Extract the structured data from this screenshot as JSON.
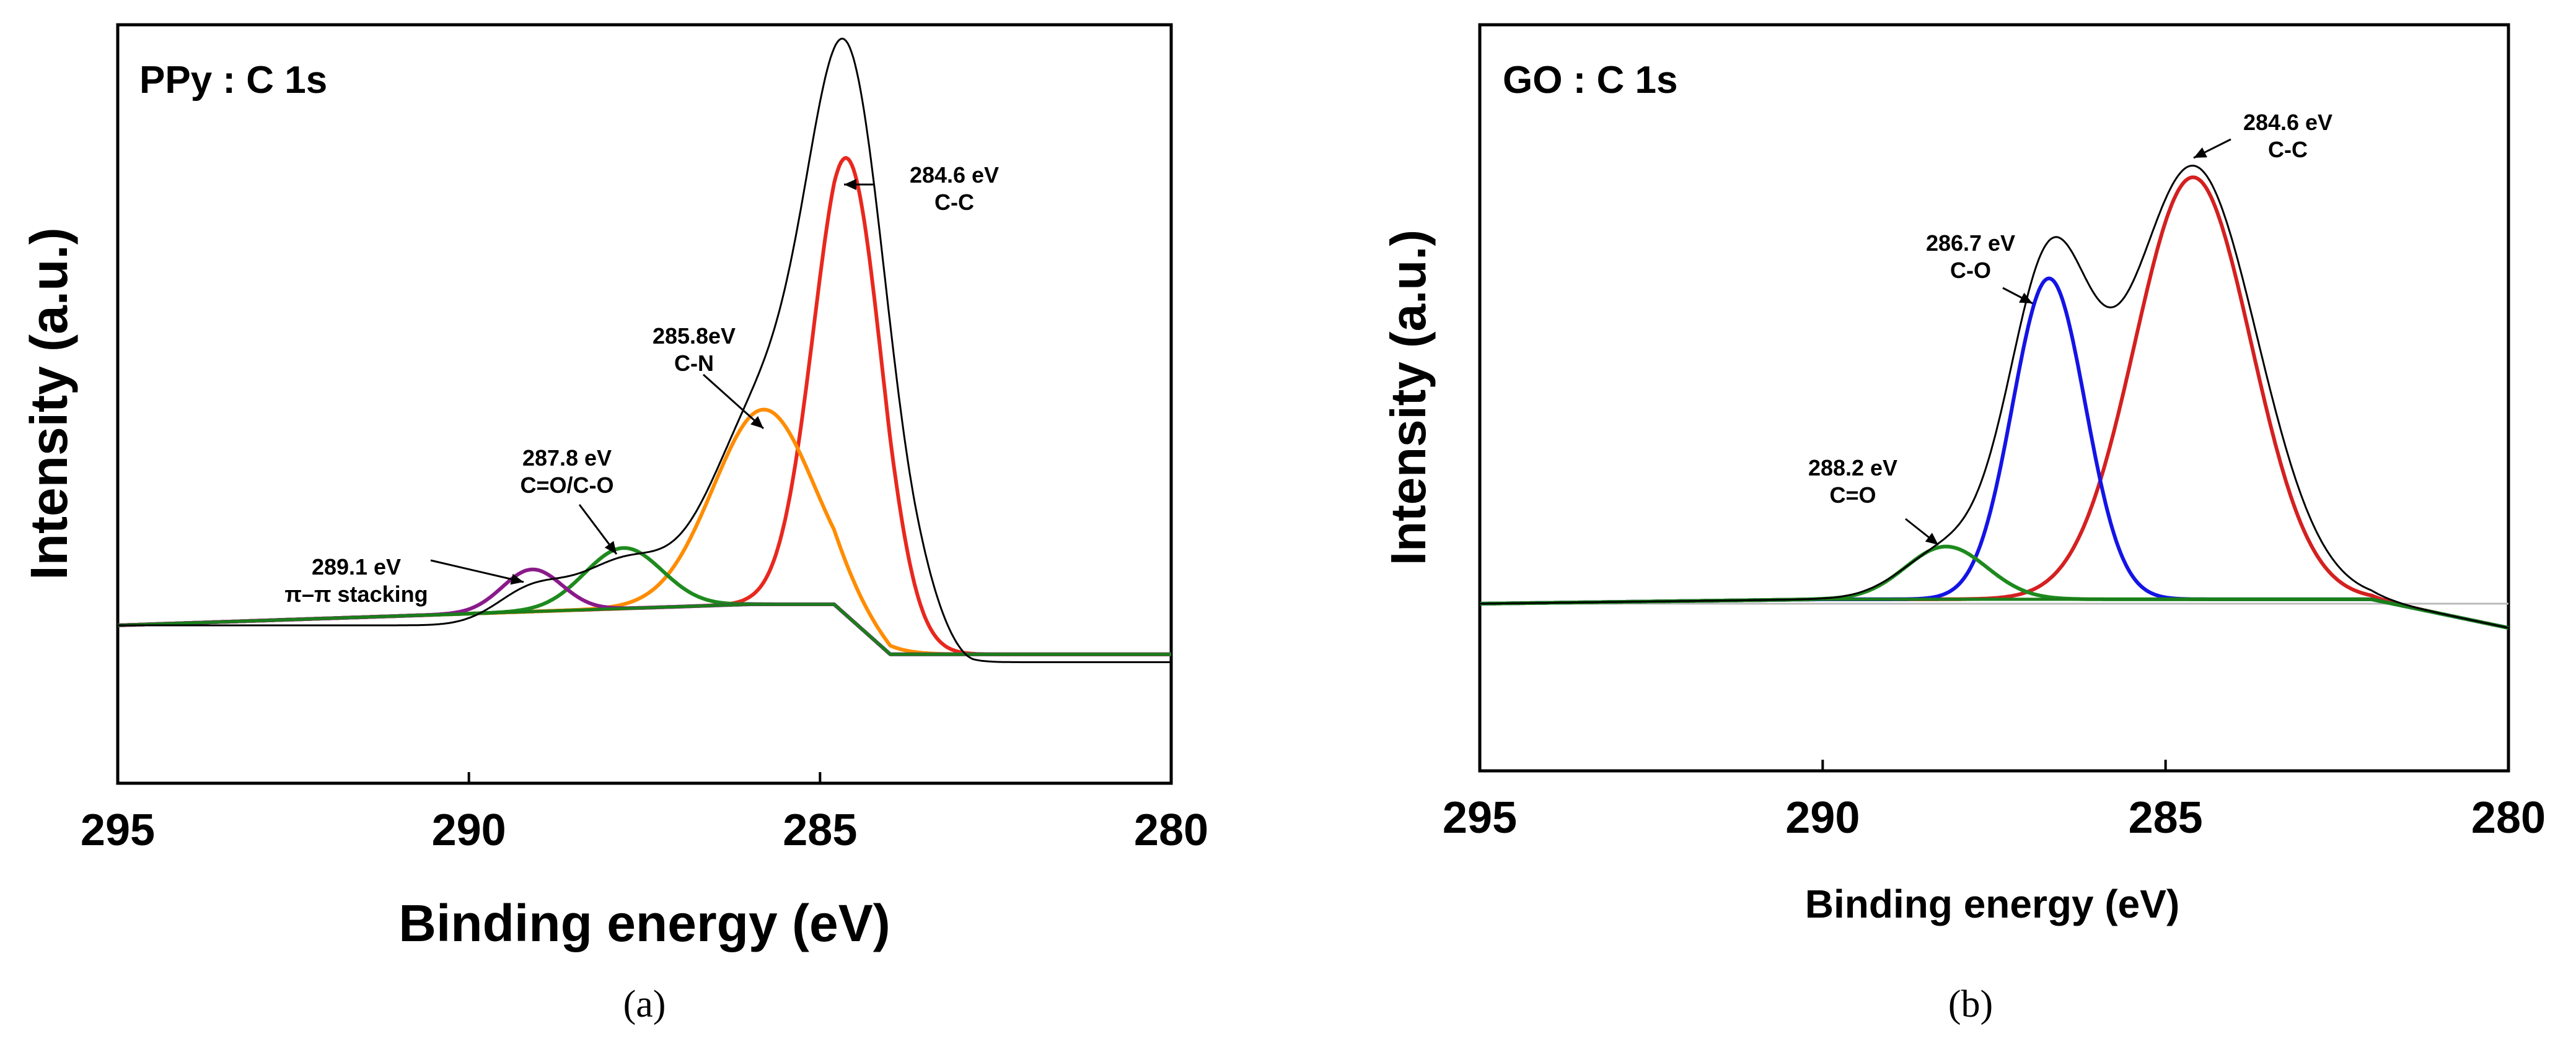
{
  "chart_data": [
    {
      "type": "line",
      "panel_label": "(a)",
      "title": "PPy : C 1s",
      "xlabel": "Binding energy (eV)",
      "ylabel": "Intensity (a.u.)",
      "xlim": [
        295,
        280
      ],
      "ylim": [
        -0.35,
        1.12
      ],
      "xticks": [
        295,
        290,
        285,
        280
      ],
      "baseline": {
        "color": "#1a7f1a",
        "points": [
          [
            295,
            0
          ],
          [
            286,
            0.04
          ],
          [
            284.8,
            0.04
          ],
          [
            284,
            -0.055
          ],
          [
            280,
            -0.055
          ]
        ]
      },
      "envelope": {
        "color": "#000000",
        "tail": {
          "start": 283.6,
          "end": 280,
          "drop": -0.07
        },
        "components": [
          {
            "center": 284.6,
            "height": 0.985,
            "fwhm": 1.3
          },
          {
            "center": 285.8,
            "height": 0.41,
            "fwhm": 1.8
          },
          {
            "center": 287.8,
            "height": 0.115,
            "fwhm": 1.5
          },
          {
            "center": 289.1,
            "height": 0.065,
            "fwhm": 1.2
          }
        ]
      },
      "series": [
        {
          "name": "C-C",
          "color": "#e8281e",
          "center": 284.6,
          "height": 0.87,
          "fwhm": 1.15
        },
        {
          "name": "C-N",
          "color": "#ff8c00",
          "center": 285.8,
          "height": 0.37,
          "fwhm": 1.7
        },
        {
          "name": "C=O/C-O",
          "color": "#1e8a1e",
          "center": 287.8,
          "height": 0.115,
          "fwhm": 1.3
        },
        {
          "name": "π–π stacking",
          "color": "#8a1a8a",
          "center": 289.1,
          "height": 0.08,
          "fwhm": 1.0
        }
      ],
      "annotations": [
        {
          "lines": [
            "284.6 eV",
            "C-C"
          ],
          "x": 284.6
        },
        {
          "lines": [
            "285.8eV",
            "C-N"
          ],
          "x": 285.8
        },
        {
          "lines": [
            "287.8 eV",
            "C=O/C-O"
          ],
          "x": 287.8
        },
        {
          "lines": [
            "289.1 eV",
            "π–π stacking"
          ],
          "x": 289.1
        }
      ]
    },
    {
      "type": "line",
      "panel_label": "(b)",
      "title": "GO : C 1s",
      "xlabel": "Binding energy (eV)",
      "ylabel": "Intensity (a.u.)",
      "xlim": [
        295,
        280
      ],
      "ylim": [
        -0.35,
        1.12
      ],
      "xticks": [
        295,
        290,
        285,
        280
      ],
      "baseline": {
        "color": "#1a7f1a",
        "points": [
          [
            295,
            0
          ],
          [
            290,
            0.01
          ],
          [
            282,
            0.01
          ],
          [
            280,
            -0.055
          ]
        ]
      },
      "reference_line": {
        "color": "#bbbbbb",
        "y": 0
      },
      "envelope": {
        "color": "#000000",
        "components": [
          {
            "center": 284.6,
            "height": 0.985,
            "fwhm": 2.2
          },
          {
            "center": 286.7,
            "height": 0.73,
            "fwhm": 1.4
          },
          {
            "center": 288.2,
            "height": 0.11,
            "fwhm": 1.5
          }
        ]
      },
      "series": [
        {
          "name": "C-C",
          "color": "#d42020",
          "center": 284.6,
          "height": 0.96,
          "fwhm": 2.0
        },
        {
          "name": "C-O",
          "color": "#1414e6",
          "center": 286.7,
          "height": 0.73,
          "fwhm": 1.25
        },
        {
          "name": "C=O",
          "color": "#1e8a1e",
          "center": 288.2,
          "height": 0.12,
          "fwhm": 1.4
        }
      ],
      "annotations": [
        {
          "lines": [
            "284.6 eV",
            "C-C"
          ],
          "x": 284.6
        },
        {
          "lines": [
            "286.7 eV",
            "C-O"
          ],
          "x": 286.7
        },
        {
          "lines": [
            "288.2 eV",
            "C=O"
          ],
          "x": 288.2
        }
      ]
    }
  ]
}
